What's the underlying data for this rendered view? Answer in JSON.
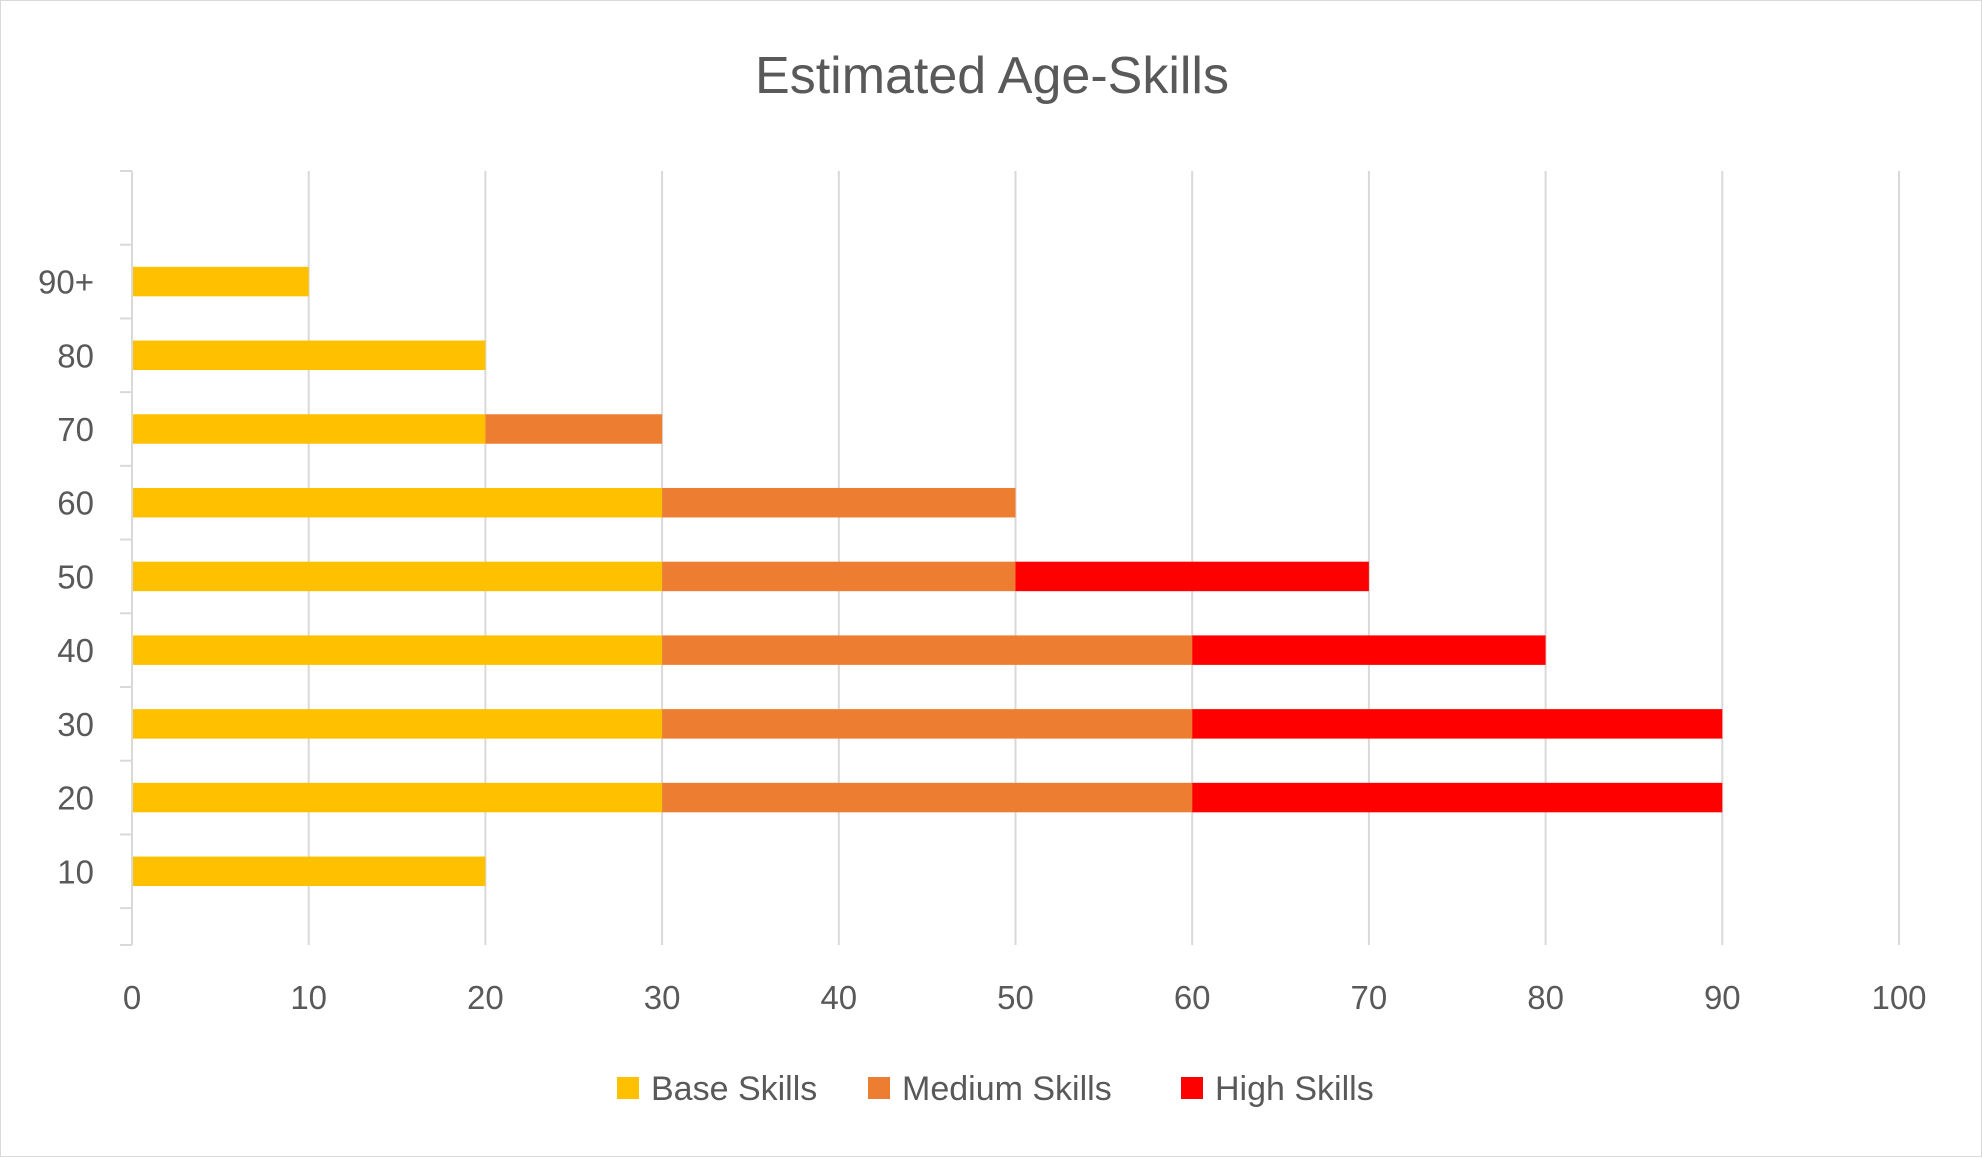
{
  "chart_data": {
    "type": "bar",
    "orientation": "horizontal",
    "stacked": true,
    "title": "Estimated Age-Skills",
    "categories": [
      "10",
      "20",
      "30",
      "40",
      "50",
      "60",
      "70",
      "80",
      "90+"
    ],
    "series": [
      {
        "name": "Base Skills",
        "color": "#FFC000",
        "values": [
          20,
          30,
          30,
          30,
          30,
          30,
          20,
          20,
          10
        ]
      },
      {
        "name": "Medium Skills",
        "color": "#ED7D31",
        "values": [
          0,
          30,
          30,
          30,
          20,
          20,
          10,
          0,
          0
        ]
      },
      {
        "name": "High Skills",
        "color": "#FF0000",
        "values": [
          0,
          30,
          30,
          20,
          20,
          0,
          0,
          0,
          0
        ]
      }
    ],
    "xlim": [
      0,
      100
    ],
    "xticks": [
      "0",
      "10",
      "20",
      "30",
      "40",
      "50",
      "60",
      "70",
      "80",
      "90",
      "100"
    ],
    "grid": "vertical",
    "legend": "bottom"
  }
}
